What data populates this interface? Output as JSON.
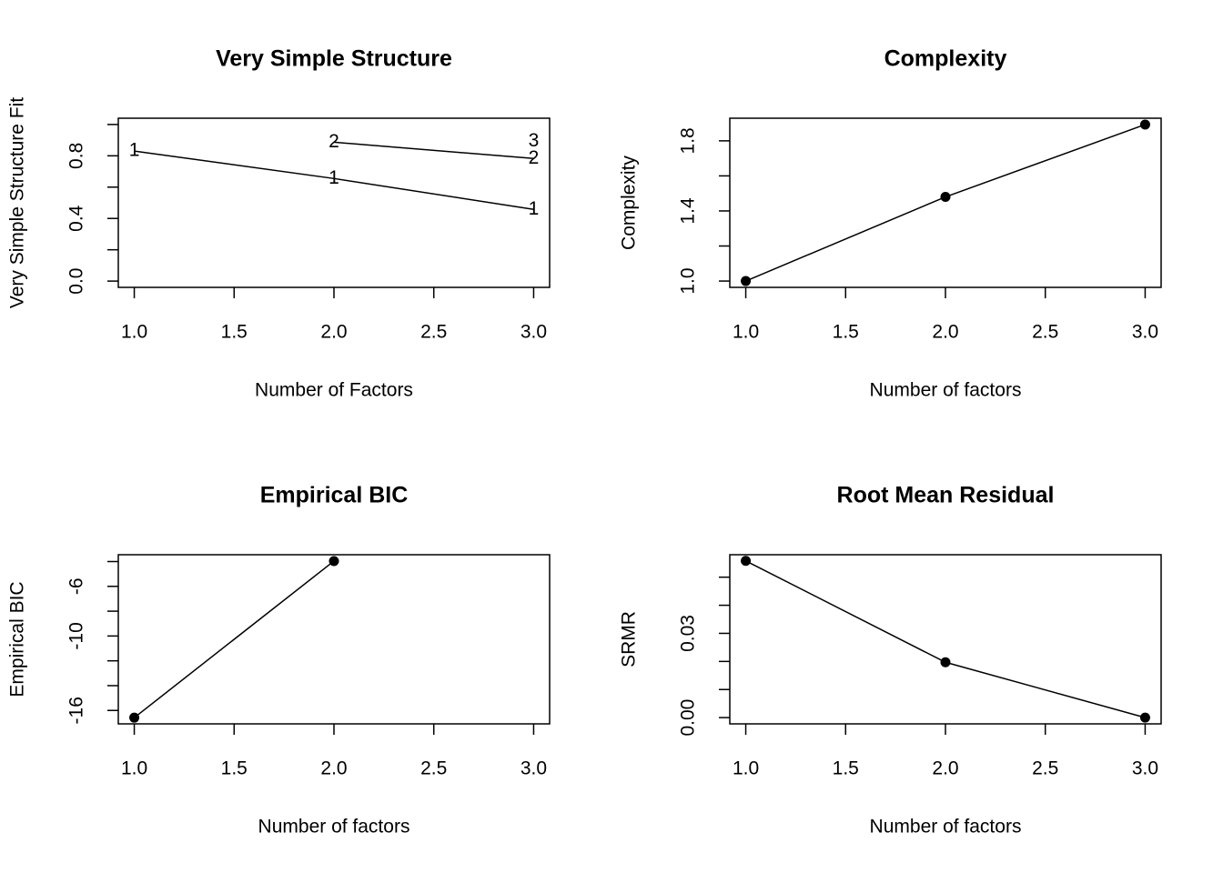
{
  "chart_data": [
    {
      "type": "line",
      "marker": "label",
      "title": "Very Simple Structure",
      "xlabel": "Number of Factors",
      "ylabel": "Very Simple Structure Fit",
      "x": [
        1,
        2,
        3
      ],
      "xlim": [
        0.92,
        3.08
      ],
      "xticks": [
        {
          "value": 1,
          "label": "1.0"
        },
        1.5,
        {
          "value": 2,
          "label": "2.0"
        },
        2.5,
        {
          "value": 3,
          "label": "3.0"
        }
      ],
      "ylim": [
        -0.04,
        1.04
      ],
      "yticks": [
        {
          "value": 0,
          "label": "0.0"
        },
        0.4,
        0.8
      ],
      "yminorticks": [
        0.2,
        0.6,
        1.0
      ],
      "series": [
        {
          "name": "1",
          "color": "#000000",
          "values": [
            0.83,
            0.655,
            0.458
          ]
        },
        {
          "name": "2",
          "color": "#000000",
          "values": [
            null,
            0.887,
            0.783
          ]
        },
        {
          "name": "3",
          "color": "#000000",
          "values": [
            null,
            null,
            0.893
          ]
        }
      ]
    },
    {
      "type": "line",
      "marker": "circle",
      "title": "Complexity",
      "xlabel": "Number of factors",
      "ylabel": "Complexity",
      "x": [
        1,
        2,
        3
      ],
      "xlim": [
        0.92,
        3.08
      ],
      "xticks": [
        {
          "value": 1,
          "label": "1.0"
        },
        1.5,
        {
          "value": 2,
          "label": "2.0"
        },
        2.5,
        {
          "value": 3,
          "label": "3.0"
        }
      ],
      "ylim": [
        0.964,
        1.929
      ],
      "yticks": [
        {
          "value": 1,
          "label": "1.0"
        },
        1.4,
        1.8
      ],
      "yminorticks": [
        1.2,
        1.6
      ],
      "series": [
        {
          "color": "#000000",
          "values": [
            1.0,
            1.48,
            1.893
          ]
        }
      ]
    },
    {
      "type": "line",
      "marker": "circle",
      "title": "Empirical BIC",
      "xlabel": "Number of factors",
      "ylabel": "Empirical BIC",
      "x": [
        1,
        2,
        3
      ],
      "xlim": [
        0.92,
        3.08
      ],
      "xticks": [
        {
          "value": 1,
          "label": "1.0"
        },
        1.5,
        {
          "value": 2,
          "label": "2.0"
        },
        2.5,
        {
          "value": 3,
          "label": "3.0"
        }
      ],
      "ylim": [
        -17.08,
        -3.45
      ],
      "yticks": [
        -16,
        -10,
        -6
      ],
      "yminorticks": [
        -14,
        -12,
        -8,
        -4
      ],
      "series": [
        {
          "color": "#000000",
          "values": [
            -16.58,
            -3.96,
            null
          ]
        }
      ]
    },
    {
      "type": "line",
      "marker": "circle",
      "title": "Root Mean Residual",
      "xlabel": "Number of factors",
      "ylabel": "SRMR",
      "x": [
        1,
        2,
        3
      ],
      "xlim": [
        0.92,
        3.08
      ],
      "xticks": [
        {
          "value": 1,
          "label": "1.0"
        },
        1.5,
        {
          "value": 2,
          "label": "2.0"
        },
        2.5,
        {
          "value": 3,
          "label": "3.0"
        }
      ],
      "ylim": [
        -0.00223,
        0.058
      ],
      "yticks": [
        {
          "value": 0,
          "label": "0.00"
        },
        {
          "value": 0.03,
          "label": "0.03"
        }
      ],
      "yminorticks": [
        0.01,
        0.02,
        0.04,
        0.05
      ],
      "series": [
        {
          "color": "#000000",
          "values": [
            0.0558,
            0.0197,
            0
          ]
        }
      ]
    }
  ]
}
